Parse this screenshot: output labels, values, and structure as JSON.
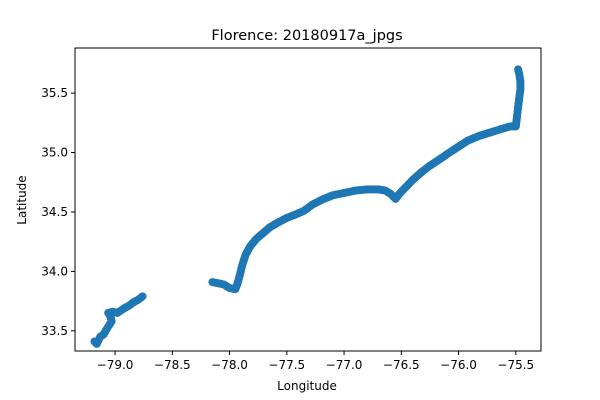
{
  "chart_data": {
    "type": "scatter",
    "title": "Florence: 20180917a_jpgs",
    "xlabel": "Longitude",
    "ylabel": "Latitude",
    "xlim": [
      -79.35,
      -75.28
    ],
    "ylim": [
      33.33,
      35.88
    ],
    "xticks": [
      -79.0,
      -78.5,
      -78.0,
      -77.5,
      -77.0,
      -76.5,
      -76.0,
      -75.5
    ],
    "xtick_labels": [
      "−79.0",
      "−78.5",
      "−78.0",
      "−77.5",
      "−77.0",
      "−76.5",
      "−76.0",
      "−75.5"
    ],
    "yticks": [
      33.5,
      34.0,
      34.5,
      35.0,
      35.5
    ],
    "ytick_labels": [
      "33.5",
      "34.0",
      "34.5",
      "35.0",
      "35.5"
    ],
    "grid": false,
    "legend": "none",
    "marker_color": "#1f77b4",
    "series": [
      {
        "points": [
          [
            -79.18,
            33.41
          ],
          [
            -79.16,
            33.39
          ],
          [
            -79.13,
            33.45
          ],
          [
            -79.1,
            33.47
          ],
          [
            -79.07,
            33.52
          ],
          [
            -79.05,
            33.55
          ],
          [
            -79.03,
            33.58
          ],
          [
            -79.04,
            33.62
          ],
          [
            -79.06,
            33.65
          ],
          [
            -79.02,
            33.66
          ],
          [
            -78.98,
            33.65
          ],
          [
            -78.95,
            33.67
          ],
          [
            -78.92,
            33.69
          ],
          [
            -78.88,
            33.71
          ],
          [
            -78.84,
            33.74
          ],
          [
            -78.8,
            33.76
          ],
          [
            -78.76,
            33.79
          ]
        ]
      },
      {
        "points": [
          [
            -78.15,
            33.91
          ],
          [
            -78.1,
            33.9
          ],
          [
            -78.05,
            33.89
          ],
          [
            -78.0,
            33.86
          ],
          [
            -77.95,
            33.85
          ],
          [
            -77.93,
            33.9
          ],
          [
            -77.91,
            33.97
          ],
          [
            -77.89,
            34.05
          ],
          [
            -77.86,
            34.14
          ],
          [
            -77.82,
            34.21
          ],
          [
            -77.77,
            34.27
          ],
          [
            -77.71,
            34.32
          ],
          [
            -77.65,
            34.37
          ],
          [
            -77.58,
            34.41
          ],
          [
            -77.5,
            34.45
          ],
          [
            -77.42,
            34.48
          ],
          [
            -77.35,
            34.51
          ],
          [
            -77.28,
            34.56
          ],
          [
            -77.2,
            34.6
          ],
          [
            -77.1,
            34.64
          ],
          [
            -77.0,
            34.66
          ],
          [
            -76.9,
            34.68
          ],
          [
            -76.8,
            34.69
          ],
          [
            -76.7,
            34.69
          ],
          [
            -76.64,
            34.68
          ],
          [
            -76.59,
            34.65
          ],
          [
            -76.55,
            34.61
          ],
          [
            -76.52,
            34.65
          ],
          [
            -76.46,
            34.71
          ],
          [
            -76.4,
            34.77
          ],
          [
            -76.33,
            34.83
          ],
          [
            -76.25,
            34.89
          ],
          [
            -76.17,
            34.94
          ],
          [
            -76.08,
            35.0
          ],
          [
            -76.0,
            35.05
          ],
          [
            -75.92,
            35.1
          ],
          [
            -75.82,
            35.14
          ],
          [
            -75.72,
            35.17
          ],
          [
            -75.62,
            35.2
          ],
          [
            -75.55,
            35.22
          ],
          [
            -75.5,
            35.22
          ],
          [
            -75.49,
            35.3
          ],
          [
            -75.48,
            35.38
          ],
          [
            -75.47,
            35.46
          ],
          [
            -75.46,
            35.53
          ],
          [
            -75.46,
            35.6
          ],
          [
            -75.47,
            35.66
          ],
          [
            -75.48,
            35.7
          ]
        ]
      }
    ]
  }
}
